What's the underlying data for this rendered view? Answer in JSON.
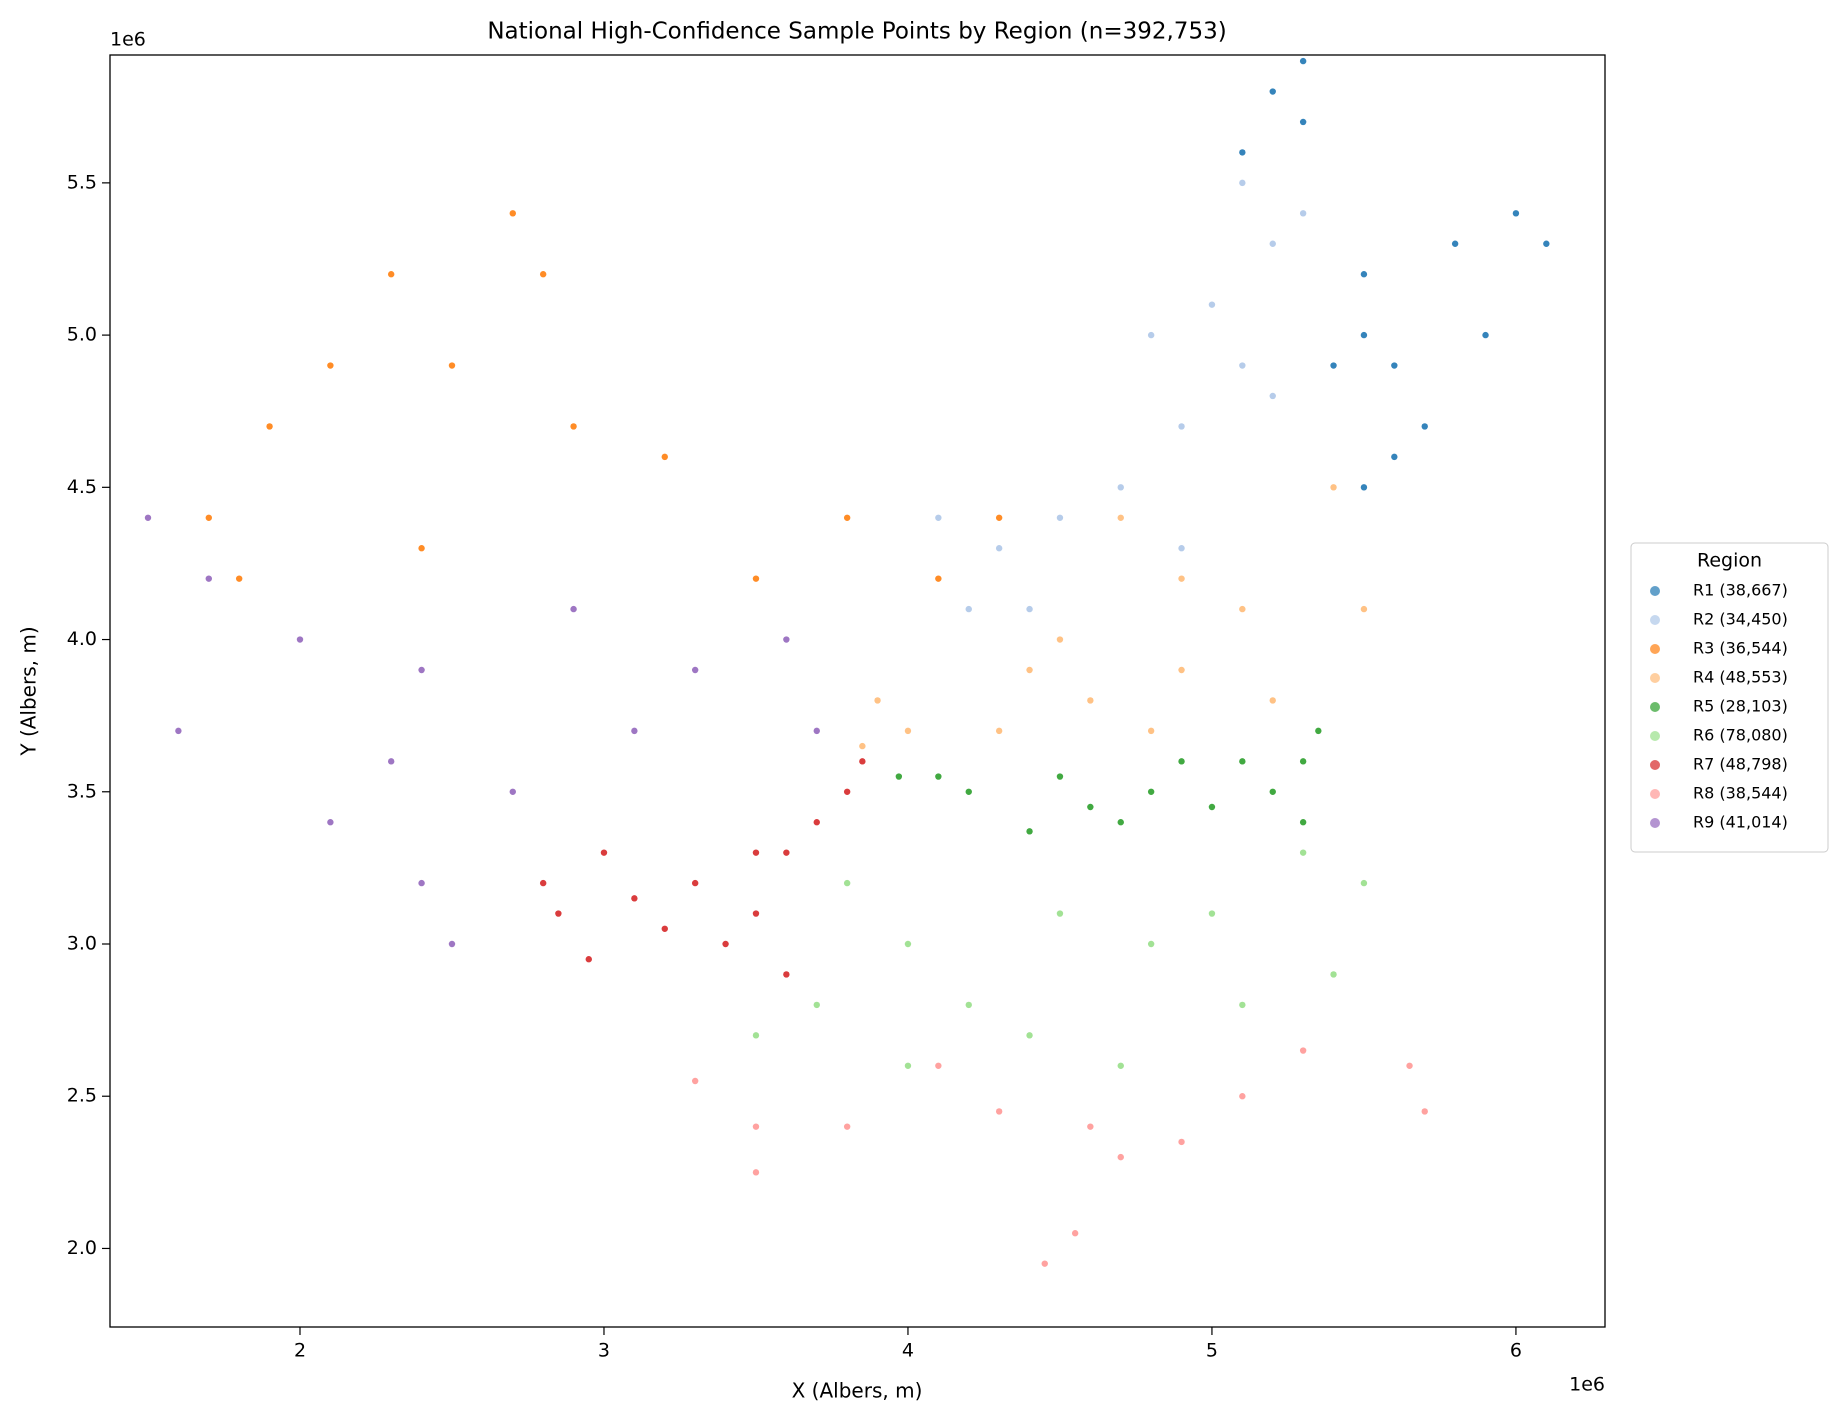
{
  "chart_data": {
    "type": "scatter",
    "title": "National High-Confidence Sample Points by Region (n=392,753)",
    "x_label": "X (Albers, m)",
    "y_label": "Y (Albers, m)",
    "x_offset_label": "1e6",
    "y_offset_label": "1e6",
    "xlim": [
      1375000,
      6293000
    ],
    "ylim": [
      1742000,
      5920000
    ],
    "xticks": [
      {
        "value": 2000000,
        "label": "2"
      },
      {
        "value": 3000000,
        "label": "3"
      },
      {
        "value": 4000000,
        "label": "4"
      },
      {
        "value": 5000000,
        "label": "5"
      },
      {
        "value": 6000000,
        "label": "6"
      }
    ],
    "yticks": [
      {
        "value": 2000000,
        "label": "2.0"
      },
      {
        "value": 2500000,
        "label": "2.5"
      },
      {
        "value": 3000000,
        "label": "3.0"
      },
      {
        "value": 3500000,
        "label": "3.5"
      },
      {
        "value": 4000000,
        "label": "4.0"
      },
      {
        "value": 4500000,
        "label": "4.5"
      },
      {
        "value": 5000000,
        "label": "5.0"
      },
      {
        "value": 5500000,
        "label": "5.5"
      }
    ],
    "grid": false,
    "legend_title": "Region",
    "legend_position": "right",
    "series": [
      {
        "name": "R1 (38,667)",
        "color": "#1f77b4",
        "x": [
          5200000,
          5300000,
          5100000,
          5500000,
          5500000,
          5600000,
          5800000,
          6000000,
          6100000,
          5700000,
          5400000,
          5900000,
          5300000,
          5600000,
          5500000
        ],
        "y": [
          5800000,
          5700000,
          5600000,
          5200000,
          5000000,
          4900000,
          5300000,
          5400000,
          5300000,
          4700000,
          4900000,
          5000000,
          5900000,
          4600000,
          4500000
        ]
      },
      {
        "name": "R2 (34,450)",
        "color": "#aec7e8",
        "x": [
          5100000,
          5200000,
          5000000,
          4900000,
          4700000,
          4500000,
          4300000,
          4200000,
          4900000,
          5200000,
          4100000,
          5100000,
          4400000,
          5300000,
          4800000
        ],
        "y": [
          5500000,
          5300000,
          5100000,
          4700000,
          4500000,
          4400000,
          4300000,
          4100000,
          4300000,
          4800000,
          4400000,
          4900000,
          4100000,
          5400000,
          5000000
        ]
      },
      {
        "name": "R3 (36,544)",
        "color": "#ff7f0e",
        "x": [
          2700000,
          2800000,
          2100000,
          2500000,
          2900000,
          1900000,
          1700000,
          1800000,
          2400000,
          3200000,
          3800000,
          4100000,
          4300000,
          3500000,
          2300000
        ],
        "y": [
          5400000,
          5200000,
          4900000,
          4900000,
          4700000,
          4700000,
          4400000,
          4200000,
          4300000,
          4600000,
          4400000,
          4200000,
          4400000,
          4200000,
          5200000
        ]
      },
      {
        "name": "R4 (48,553)",
        "color": "#ffbb78",
        "x": [
          4700000,
          4900000,
          5400000,
          4500000,
          4600000,
          4900000,
          5200000,
          5500000,
          4000000,
          3900000,
          4300000,
          4800000,
          5100000,
          4400000,
          3850000
        ],
        "y": [
          4400000,
          4200000,
          4500000,
          4000000,
          3800000,
          3900000,
          3800000,
          4100000,
          3700000,
          3800000,
          3700000,
          3700000,
          4100000,
          3900000,
          3650000
        ]
      },
      {
        "name": "R5 (28,103)",
        "color": "#2ca02c",
        "x": [
          3970000,
          4200000,
          4400000,
          4600000,
          4800000,
          5000000,
          5300000,
          5350000,
          5200000,
          4500000,
          4700000,
          4100000,
          5100000,
          5300000,
          4900000
        ],
        "y": [
          3550000,
          3500000,
          3370000,
          3450000,
          3500000,
          3450000,
          3600000,
          3700000,
          3500000,
          3550000,
          3400000,
          3550000,
          3600000,
          3400000,
          3600000
        ]
      },
      {
        "name": "R6 (78,080)",
        "color": "#98df8a",
        "x": [
          3800000,
          4000000,
          4200000,
          4500000,
          4800000,
          5000000,
          5300000,
          5500000,
          3700000,
          4000000,
          4400000,
          4700000,
          5100000,
          5400000,
          3500000
        ],
        "y": [
          3200000,
          3000000,
          2800000,
          3100000,
          3000000,
          3100000,
          3300000,
          3200000,
          2800000,
          2600000,
          2700000,
          2600000,
          2800000,
          2900000,
          2700000
        ]
      },
      {
        "name": "R7 (48,798)",
        "color": "#d62728",
        "x": [
          2800000,
          3000000,
          3100000,
          2950000,
          3300000,
          3500000,
          3600000,
          3700000,
          3400000,
          3600000,
          3800000,
          3200000,
          2850000,
          3500000,
          3850000
        ],
        "y": [
          3200000,
          3300000,
          3150000,
          2950000,
          3200000,
          3100000,
          3300000,
          3400000,
          3000000,
          2900000,
          3500000,
          3050000,
          3100000,
          3300000,
          3600000
        ]
      },
      {
        "name": "R8 (38,544)",
        "color": "#ff9896",
        "x": [
          3300000,
          3500000,
          3500000,
          4100000,
          4300000,
          4600000,
          4900000,
          5100000,
          5300000,
          5650000,
          5700000,
          4450000,
          4550000,
          4700000,
          3800000
        ],
        "y": [
          2550000,
          2400000,
          2250000,
          2600000,
          2450000,
          2400000,
          2350000,
          2500000,
          2650000,
          2600000,
          2450000,
          1950000,
          2050000,
          2300000,
          2400000
        ]
      },
      {
        "name": "R9 (41,014)",
        "color": "#9467bd",
        "x": [
          1500000,
          1700000,
          1600000,
          2000000,
          2400000,
          2900000,
          3300000,
          3600000,
          3700000,
          2100000,
          2400000,
          2700000,
          3100000,
          2500000,
          2300000
        ],
        "y": [
          4400000,
          4200000,
          3700000,
          4000000,
          3900000,
          4100000,
          3900000,
          4000000,
          3700000,
          3400000,
          3200000,
          3500000,
          3700000,
          3000000,
          3600000
        ]
      }
    ]
  }
}
